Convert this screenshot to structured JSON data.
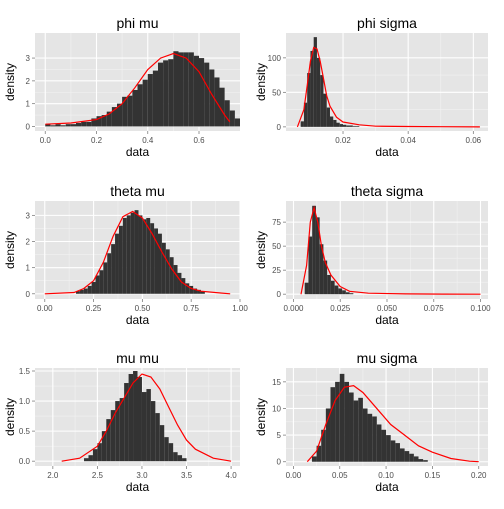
{
  "colors": {
    "panel_bg": "#E5E5E5",
    "grid_major": "#FFFFFF",
    "grid_minor": "#F2F2F2",
    "bar_fill": "#333333",
    "density_line": "#FF0000",
    "tick_text": "#4D4D4D"
  },
  "chart_data": [
    {
      "type": "bar",
      "title": "phi mu",
      "xlabel": "data",
      "ylabel": "density",
      "xlim": [
        -0.04,
        0.76
      ],
      "ylim": [
        -0.2,
        4.1
      ],
      "x_ticks": [
        0.0,
        0.2,
        0.4,
        0.6
      ],
      "x_tick_labels": [
        "0.0",
        "0.2",
        "0.4",
        "0.6"
      ],
      "y_ticks": [
        0,
        1,
        2,
        3
      ],
      "y_tick_labels": [
        "0",
        "1",
        "2",
        "3"
      ],
      "bin_width": 0.02,
      "bins_start": 0.0,
      "values": [
        0.1,
        0.05,
        0.1,
        0.05,
        0.1,
        0.1,
        0.15,
        0.2,
        0.2,
        0.35,
        0.45,
        0.5,
        0.65,
        0.85,
        1.0,
        1.3,
        1.35,
        1.6,
        1.85,
        2.05,
        2.3,
        2.45,
        2.8,
        2.9,
        2.95,
        3.3,
        3.25,
        3.25,
        3.25,
        3.1,
        3.0,
        2.8,
        2.5,
        2.15,
        1.7,
        1.15,
        0.7,
        0.35
      ],
      "density_x": [
        0.0,
        0.1,
        0.2,
        0.25,
        0.3,
        0.35,
        0.4,
        0.45,
        0.5,
        0.55,
        0.6,
        0.65,
        0.7,
        0.72
      ],
      "density_y": [
        0.1,
        0.15,
        0.3,
        0.55,
        1.0,
        1.7,
        2.5,
        3.0,
        3.2,
        3.0,
        2.4,
        1.4,
        0.5,
        0.2
      ]
    },
    {
      "type": "bar",
      "title": "phi sigma",
      "xlabel": "data",
      "ylabel": "density",
      "xlim": [
        0.0025,
        0.0645
      ],
      "ylim": [
        -6,
        136
      ],
      "x_ticks": [
        0.02,
        0.04,
        0.06
      ],
      "x_tick_labels": [
        "0.02",
        "0.04",
        "0.06"
      ],
      "y_ticks": [
        0,
        50,
        100
      ],
      "y_tick_labels": [
        "0",
        "50",
        "100"
      ],
      "bin_width": 0.001,
      "bins_start": 0.007,
      "values": [
        8,
        35,
        78,
        110,
        130,
        100,
        75,
        48,
        28,
        15,
        10,
        6,
        4,
        3,
        2,
        2,
        1,
        1
      ],
      "density_x": [
        0.006,
        0.008,
        0.009,
        0.01,
        0.011,
        0.012,
        0.013,
        0.014,
        0.015,
        0.016,
        0.018,
        0.02,
        0.025,
        0.03,
        0.04,
        0.05,
        0.062
      ],
      "density_y": [
        0,
        25,
        60,
        95,
        115,
        113,
        95,
        70,
        45,
        30,
        14,
        7,
        3,
        1,
        0.5,
        0.2,
        0
      ]
    },
    {
      "type": "bar",
      "title": "theta mu",
      "xlabel": "data",
      "ylabel": "density",
      "xlim": [
        -0.05,
        1.0
      ],
      "ylim": [
        -0.2,
        3.55
      ],
      "x_ticks": [
        0.0,
        0.25,
        0.5,
        0.75,
        1.0
      ],
      "x_tick_labels": [
        "0.00",
        "0.25",
        "0.50",
        "0.75",
        "1.00"
      ],
      "y_ticks": [
        0,
        1,
        2,
        3
      ],
      "y_tick_labels": [
        "0",
        "1",
        "2",
        "3"
      ],
      "bin_width": 0.02,
      "bins_start": 0.16,
      "values": [
        0.1,
        0.15,
        0.2,
        0.3,
        0.45,
        0.7,
        0.9,
        1.2,
        1.55,
        1.9,
        2.3,
        2.6,
        2.9,
        3.0,
        3.1,
        3.2,
        3.0,
        2.85,
        2.9,
        2.7,
        2.5,
        2.3,
        1.95,
        1.7,
        1.4,
        1.1,
        0.8,
        0.6,
        0.4,
        0.3,
        0.2,
        0.15,
        0.1
      ],
      "density_x": [
        0.0,
        0.15,
        0.2,
        0.25,
        0.3,
        0.35,
        0.4,
        0.45,
        0.5,
        0.55,
        0.6,
        0.65,
        0.7,
        0.75,
        0.8,
        0.9,
        0.95
      ],
      "density_y": [
        0,
        0.05,
        0.2,
        0.5,
        1.2,
        2.2,
        2.95,
        3.15,
        2.9,
        2.3,
        1.6,
        0.95,
        0.45,
        0.2,
        0.1,
        0.03,
        0
      ]
    },
    {
      "type": "bar",
      "title": "theta sigma",
      "xlabel": "data",
      "ylabel": "density",
      "xlim": [
        -0.004,
        0.104
      ],
      "ylim": [
        -5,
        97
      ],
      "x_ticks": [
        0.0,
        0.025,
        0.05,
        0.075,
        0.1
      ],
      "x_tick_labels": [
        "0.000",
        "0.025",
        "0.050",
        "0.075",
        "0.100"
      ],
      "y_ticks": [
        0,
        25,
        50,
        75
      ],
      "y_tick_labels": [
        "0",
        "25",
        "50",
        "75"
      ],
      "bin_width": 0.002,
      "bins_start": 0.006,
      "values": [
        12,
        60,
        92,
        80,
        52,
        35,
        20,
        14,
        9,
        6,
        4,
        2,
        1
      ],
      "density_x": [
        0.004,
        0.007,
        0.009,
        0.011,
        0.013,
        0.015,
        0.017,
        0.02,
        0.025,
        0.03,
        0.04,
        0.06,
        0.08,
        0.1
      ],
      "density_y": [
        0,
        30,
        75,
        90,
        75,
        50,
        33,
        20,
        8,
        3,
        1,
        0.3,
        0.1,
        0
      ]
    },
    {
      "type": "bar",
      "title": "mu mu",
      "xlabel": "data",
      "ylabel": "density",
      "xlim": [
        1.8,
        4.1
      ],
      "ylim": [
        -0.08,
        1.55
      ],
      "x_ticks": [
        2.0,
        2.5,
        3.0,
        3.5,
        4.0
      ],
      "x_tick_labels": [
        "2.0",
        "2.5",
        "3.0",
        "3.5",
        "4.0"
      ],
      "y_ticks": [
        0.0,
        0.5,
        1.0,
        1.5
      ],
      "y_tick_labels": [
        "0.0",
        "0.5",
        "1.0",
        "1.5"
      ],
      "bin_width": 0.05,
      "bins_start": 2.35,
      "values": [
        0.05,
        0.1,
        0.2,
        0.3,
        0.5,
        0.7,
        0.85,
        1.0,
        1.05,
        1.3,
        1.45,
        1.5,
        1.4,
        1.15,
        1.2,
        1.0,
        0.8,
        0.6,
        0.4,
        0.3,
        0.15,
        0.1,
        0.05
      ],
      "density_x": [
        2.1,
        2.3,
        2.5,
        2.6,
        2.7,
        2.8,
        2.9,
        3.0,
        3.1,
        3.2,
        3.3,
        3.4,
        3.5,
        3.6,
        3.8,
        4.0
      ],
      "density_y": [
        0,
        0.05,
        0.25,
        0.5,
        0.8,
        1.05,
        1.3,
        1.45,
        1.4,
        1.2,
        0.9,
        0.6,
        0.35,
        0.2,
        0.05,
        0
      ]
    },
    {
      "type": "bar",
      "title": "mu sigma",
      "xlabel": "data",
      "ylabel": "density",
      "xlim": [
        -0.008,
        0.21
      ],
      "ylim": [
        -0.8,
        17.6
      ],
      "x_ticks": [
        0.0,
        0.05,
        0.1,
        0.15,
        0.2
      ],
      "x_tick_labels": [
        "0.00",
        "0.05",
        "0.10",
        "0.15",
        "0.20"
      ],
      "y_ticks": [
        0,
        5,
        10,
        15
      ],
      "y_tick_labels": [
        "0",
        "5",
        "10",
        "15"
      ],
      "bin_width": 0.005,
      "bins_start": 0.02,
      "values": [
        1,
        3,
        6,
        10,
        14,
        15,
        16.5,
        15,
        13,
        11.5,
        12,
        10,
        9,
        8.5,
        7,
        6,
        5,
        4,
        3.5,
        2.5,
        2,
        1.5,
        1,
        0.5,
        0.3
      ],
      "density_x": [
        0.015,
        0.025,
        0.035,
        0.045,
        0.055,
        0.065,
        0.075,
        0.085,
        0.095,
        0.105,
        0.12,
        0.135,
        0.15,
        0.17,
        0.19,
        0.2
      ],
      "density_y": [
        0,
        2,
        7,
        11.5,
        14,
        14.3,
        13,
        11,
        9,
        7,
        5,
        3,
        1.8,
        0.6,
        0.1,
        0
      ]
    }
  ]
}
